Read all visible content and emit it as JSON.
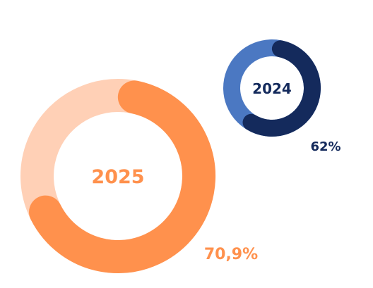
{
  "chart_data": [
    {
      "type": "pie",
      "center_label": "2025",
      "value_label": "70,9%",
      "value": 70.9,
      "max": 100,
      "colors": {
        "value": "#ff914d",
        "track": "#ffd0b6"
      }
    },
    {
      "type": "pie",
      "center_label": "2024",
      "value_label": "62%",
      "value": 62,
      "max": 100,
      "colors": {
        "value": "#142a5c",
        "track": "#4b78c2"
      }
    }
  ]
}
